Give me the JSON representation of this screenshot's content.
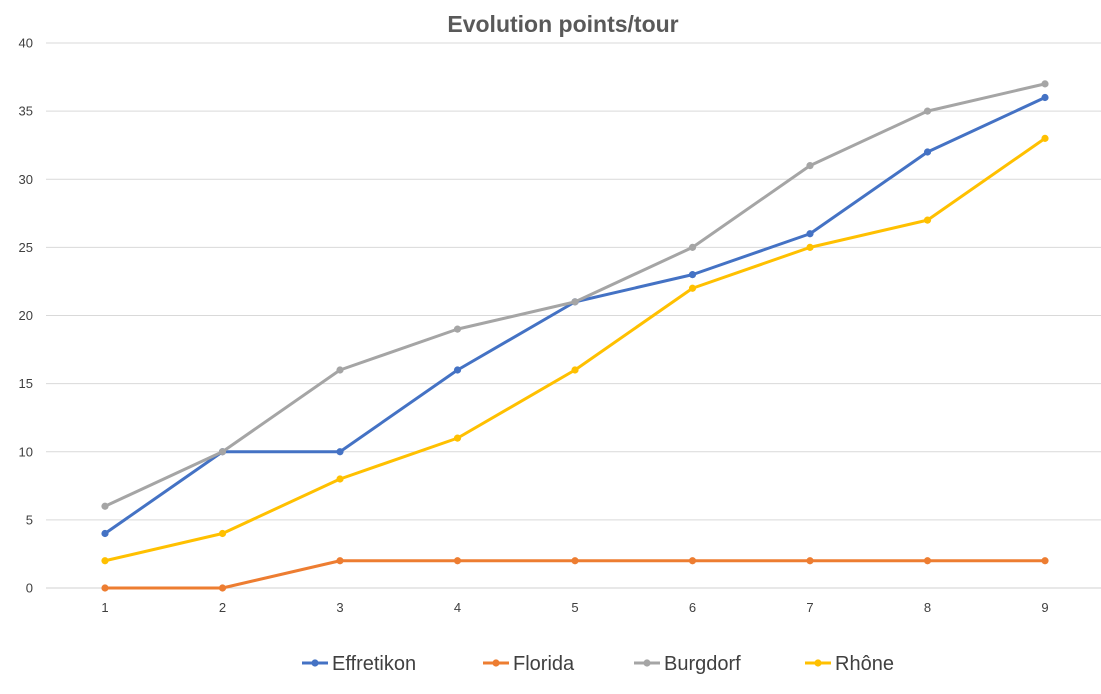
{
  "chart_data": {
    "type": "line",
    "title": "Evolution points/tour",
    "xlabel": "",
    "ylabel": "",
    "x": [
      1,
      2,
      3,
      4,
      5,
      6,
      7,
      8,
      9
    ],
    "ylim": [
      0,
      40
    ],
    "yticks": [
      0,
      5,
      10,
      15,
      20,
      25,
      30,
      35,
      40
    ],
    "grid": true,
    "legend_position": "bottom",
    "series": [
      {
        "name": "Effretikon",
        "color": "#4472C4",
        "values": [
          4,
          10,
          10,
          16,
          21,
          23,
          26,
          32,
          36
        ]
      },
      {
        "name": "Florida",
        "color": "#ED7D31",
        "values": [
          0,
          0,
          2,
          2,
          2,
          2,
          2,
          2,
          2
        ]
      },
      {
        "name": "Burgdorf",
        "color": "#A5A5A5",
        "values": [
          6,
          10,
          16,
          19,
          21,
          25,
          31,
          35,
          37
        ]
      },
      {
        "name": "Rhône",
        "color": "#FFC000",
        "values": [
          2,
          4,
          8,
          11,
          16,
          22,
          25,
          27,
          33
        ]
      }
    ]
  }
}
